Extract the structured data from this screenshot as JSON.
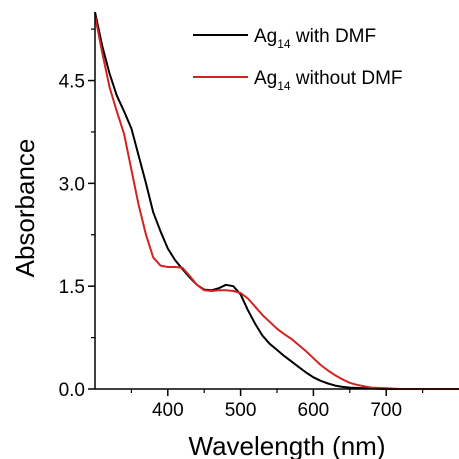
{
  "chart_data": {
    "type": "line",
    "title": "",
    "xlabel": "Wavelength (nm)",
    "ylabel": "Absorbance",
    "xlim": [
      300,
      800
    ],
    "ylim": [
      0,
      5.5
    ],
    "xticks": [
      400,
      500,
      600,
      700
    ],
    "xtick_labels": [
      "400",
      "500",
      "600",
      "700"
    ],
    "yticks": [
      0.0,
      1.5,
      3.0,
      4.5
    ],
    "ytick_labels": [
      "0.0",
      "1.5",
      "3.0",
      "4.5"
    ],
    "grid": false,
    "legend_position": "top-right",
    "series": [
      {
        "name": "Ag14 with DMF",
        "legend_main": "Ag",
        "legend_sub": "14",
        "legend_rest": " with DMF",
        "color": "#000000",
        "points": [
          [
            300,
            5.5
          ],
          [
            310,
            5.0
          ],
          [
            320,
            4.6
          ],
          [
            330,
            4.28
          ],
          [
            340,
            4.05
          ],
          [
            350,
            3.8
          ],
          [
            360,
            3.4
          ],
          [
            370,
            3.0
          ],
          [
            380,
            2.58
          ],
          [
            390,
            2.3
          ],
          [
            400,
            2.05
          ],
          [
            410,
            1.88
          ],
          [
            420,
            1.75
          ],
          [
            430,
            1.63
          ],
          [
            440,
            1.52
          ],
          [
            450,
            1.45
          ],
          [
            460,
            1.44
          ],
          [
            470,
            1.47
          ],
          [
            480,
            1.52
          ],
          [
            490,
            1.5
          ],
          [
            500,
            1.38
          ],
          [
            510,
            1.15
          ],
          [
            520,
            0.95
          ],
          [
            530,
            0.78
          ],
          [
            540,
            0.66
          ],
          [
            550,
            0.57
          ],
          [
            560,
            0.48
          ],
          [
            570,
            0.4
          ],
          [
            580,
            0.32
          ],
          [
            590,
            0.24
          ],
          [
            600,
            0.17
          ],
          [
            610,
            0.12
          ],
          [
            620,
            0.08
          ],
          [
            630,
            0.05
          ],
          [
            640,
            0.03
          ],
          [
            650,
            0.02
          ],
          [
            670,
            0.01
          ],
          [
            700,
            0.0
          ],
          [
            800,
            0.0
          ]
        ]
      },
      {
        "name": "Ag14 without DMF",
        "legend_main": "Ag",
        "legend_sub": "14",
        "legend_rest": " without DMF",
        "color": "#d42121",
        "points": [
          [
            300,
            5.45
          ],
          [
            310,
            4.9
          ],
          [
            320,
            4.4
          ],
          [
            330,
            4.05
          ],
          [
            340,
            3.72
          ],
          [
            350,
            3.2
          ],
          [
            360,
            2.68
          ],
          [
            370,
            2.25
          ],
          [
            380,
            1.92
          ],
          [
            390,
            1.8
          ],
          [
            400,
            1.78
          ],
          [
            410,
            1.78
          ],
          [
            420,
            1.77
          ],
          [
            430,
            1.65
          ],
          [
            440,
            1.52
          ],
          [
            450,
            1.44
          ],
          [
            460,
            1.43
          ],
          [
            470,
            1.44
          ],
          [
            480,
            1.44
          ],
          [
            490,
            1.43
          ],
          [
            500,
            1.4
          ],
          [
            510,
            1.32
          ],
          [
            520,
            1.2
          ],
          [
            530,
            1.08
          ],
          [
            540,
            0.98
          ],
          [
            550,
            0.88
          ],
          [
            560,
            0.8
          ],
          [
            570,
            0.73
          ],
          [
            580,
            0.64
          ],
          [
            590,
            0.55
          ],
          [
            600,
            0.45
          ],
          [
            610,
            0.35
          ],
          [
            620,
            0.27
          ],
          [
            630,
            0.2
          ],
          [
            640,
            0.14
          ],
          [
            650,
            0.09
          ],
          [
            660,
            0.06
          ],
          [
            670,
            0.04
          ],
          [
            680,
            0.02
          ],
          [
            700,
            0.01
          ],
          [
            720,
            0.0
          ],
          [
            800,
            0.0
          ]
        ]
      }
    ]
  }
}
